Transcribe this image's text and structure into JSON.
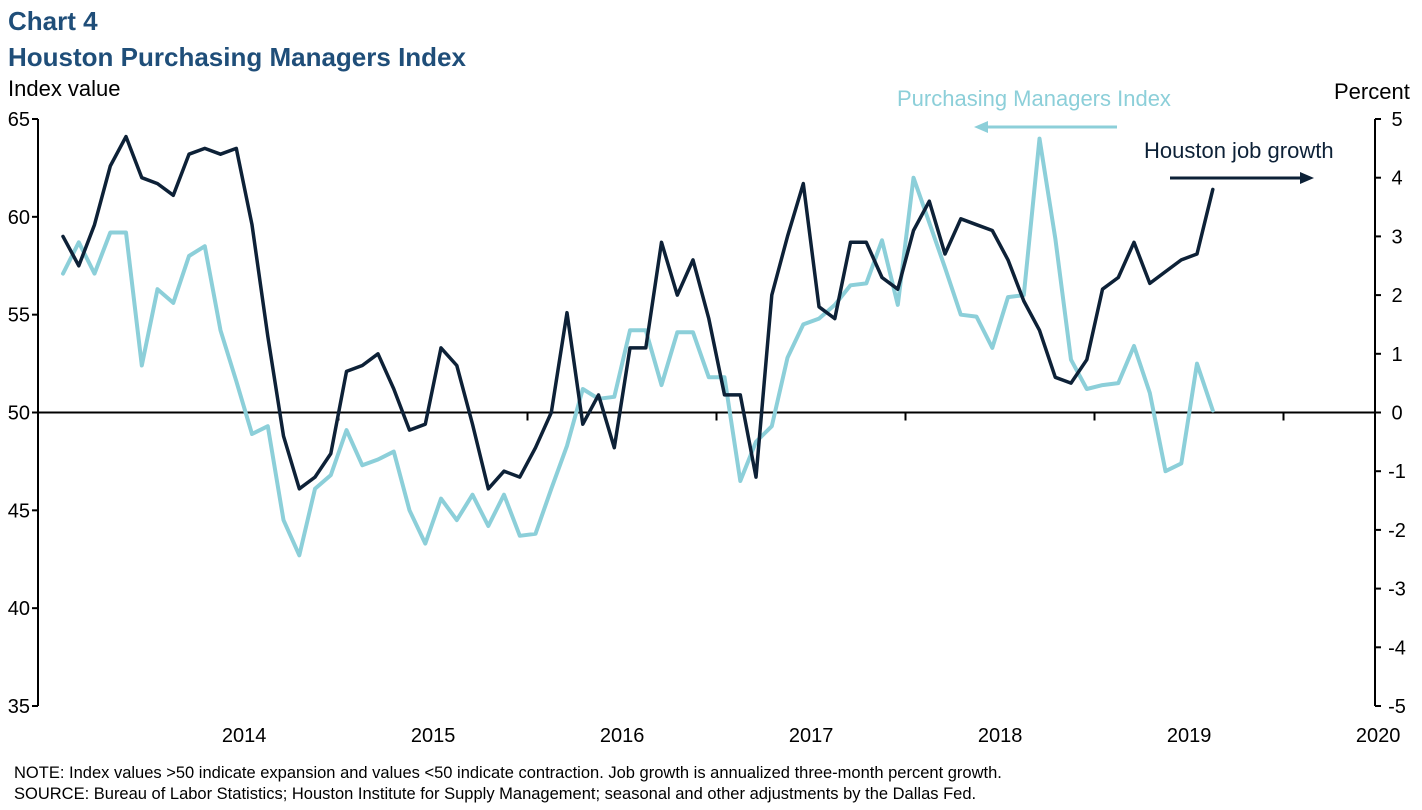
{
  "header": {
    "chart_label": "Chart 4",
    "title": "Houston Purchasing Managers Index"
  },
  "axes": {
    "left_unit": "Index value",
    "right_unit": "Percent"
  },
  "legend": {
    "pmi_label": "Purchasing Managers Index",
    "job_label": "Houston job growth"
  },
  "footer": {
    "note": "NOTE: Index values >50 indicate expansion and values <50 indicate contraction. Job growth is annualized three-month percent growth.",
    "source": "SOURCE: Bureau of Labor Statistics; Houston Institute for Supply Management; seasonal and other adjustments by the Dallas Fed."
  },
  "chart_data": {
    "type": "line",
    "title": "Houston Purchasing Managers Index",
    "x_start": "2013-07",
    "x_tick_labels": [
      "2014",
      "2015",
      "2016",
      "2017",
      "2018",
      "2019",
      "2020"
    ],
    "left_axis": {
      "label": "Index value",
      "ylim": [
        35,
        65
      ],
      "ticks": [
        35,
        40,
        45,
        50,
        55,
        60,
        65
      ]
    },
    "right_axis": {
      "label": "Percent",
      "ylim": [
        -5,
        5
      ],
      "ticks": [
        -5,
        -4,
        -3,
        -2,
        -1,
        0,
        1,
        2,
        3,
        4,
        5
      ]
    },
    "reference_line": {
      "axis": "left",
      "value": 50
    },
    "colors": {
      "pmi": "#8ccfd9",
      "job": "#0d2137",
      "title": "#1f4e79"
    },
    "series": [
      {
        "name": "Purchasing Managers Index",
        "axis": "left",
        "color": "#8ccfd9",
        "values": [
          57.1,
          58.7,
          57.1,
          59.2,
          59.2,
          52.4,
          56.3,
          55.6,
          58.0,
          58.5,
          54.2,
          51.6,
          48.9,
          49.3,
          44.5,
          42.7,
          46.1,
          46.8,
          49.1,
          47.3,
          47.6,
          48.0,
          45.0,
          43.3,
          45.6,
          44.5,
          45.8,
          44.2,
          45.8,
          43.7,
          43.8,
          46.1,
          48.3,
          51.2,
          50.7,
          50.8,
          54.2,
          54.2,
          51.4,
          54.1,
          54.1,
          51.8,
          51.8,
          46.5,
          48.5,
          49.3,
          52.8,
          54.5,
          54.8,
          55.5,
          56.5,
          56.6,
          58.8,
          55.5,
          62.0,
          59.7,
          57.4,
          55.0,
          54.9,
          53.3,
          55.9,
          56.0,
          64.0,
          58.9,
          52.7,
          51.2,
          51.4,
          51.5,
          53.4,
          51.0,
          47.0,
          47.4,
          52.5,
          50.1
        ]
      },
      {
        "name": "Houston job growth",
        "axis": "right",
        "color": "#0d2137",
        "values": [
          3.0,
          2.5,
          3.2,
          4.2,
          4.7,
          4.0,
          3.9,
          3.7,
          4.4,
          4.5,
          4.4,
          4.5,
          3.2,
          1.3,
          -0.4,
          -1.3,
          -1.1,
          -0.7,
          0.7,
          0.8,
          1.0,
          0.4,
          -0.3,
          -0.2,
          1.1,
          0.8,
          -0.2,
          -1.3,
          -1.0,
          -1.1,
          -0.6,
          0.0,
          1.7,
          -0.2,
          0.3,
          -0.6,
          1.1,
          1.1,
          2.9,
          2.0,
          2.6,
          1.6,
          0.3,
          0.3,
          -1.1,
          2.0,
          3.0,
          3.9,
          1.8,
          1.6,
          2.9,
          2.9,
          2.3,
          2.1,
          3.1,
          3.6,
          2.7,
          3.3,
          3.2,
          3.1,
          2.6,
          1.9,
          1.4,
          0.6,
          0.5,
          0.9,
          2.1,
          2.3,
          2.9,
          2.2,
          2.4,
          2.6,
          2.7,
          3.8
        ]
      }
    ],
    "grid": false,
    "legend_placement": "top-right"
  }
}
